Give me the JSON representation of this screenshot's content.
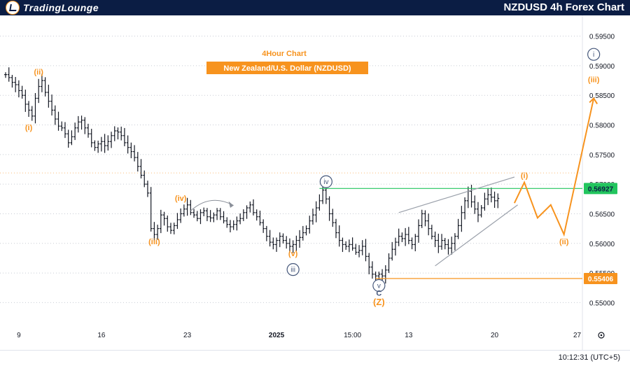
{
  "header": {
    "brand": "TradingLounge",
    "chart_title": "NZDUSD 4h Forex Chart"
  },
  "annotations": {
    "timeframe": "4Hour Chart",
    "instrument": "New Zealand/U.S. Dollar (NZDUSD)"
  },
  "footer": {
    "clock": "10:12:31 (UTC+5)"
  },
  "colors": {
    "orange": "#f7931e",
    "navy": "#0b1d44",
    "green": "#22c55e",
    "wave_circle": "#45577a"
  },
  "chart_data": {
    "type": "line",
    "title": "NZDUSD 4h Forex Chart",
    "y_axis": {
      "ticks": [
        "0.59500",
        "0.59000",
        "0.58500",
        "0.58000",
        "0.57500",
        "0.57000",
        "0.56500",
        "0.56000",
        "0.55500",
        "0.55000"
      ],
      "range": [
        0.5465,
        0.5985
      ]
    },
    "x_axis": {
      "ticks": [
        {
          "label": "9",
          "i": 4
        },
        {
          "label": "16",
          "i": 29
        },
        {
          "label": "23",
          "i": 55
        },
        {
          "label": "2025",
          "i": 82
        },
        {
          "label": "15:00",
          "i": 105
        },
        {
          "label": "13",
          "i": 122
        },
        {
          "label": "20",
          "i": 148
        },
        {
          "label": "27",
          "i": 173
        }
      ]
    },
    "price_levels": [
      {
        "label": "0.56927",
        "value": 0.56927,
        "color": "#22c55e"
      },
      {
        "label": "0.55406",
        "value": 0.55406,
        "color": "#f7931e"
      }
    ],
    "series": [
      {
        "values": [
          0.5885,
          0.588,
          0.5872,
          0.5868,
          0.5858,
          0.585,
          0.5835,
          0.5825,
          0.5815,
          0.5845,
          0.5865,
          0.5875,
          0.5855,
          0.584,
          0.5825,
          0.581,
          0.5798,
          0.5795,
          0.5785,
          0.577,
          0.578,
          0.5795,
          0.5805,
          0.5808,
          0.5795,
          0.5785,
          0.577,
          0.5762,
          0.5768,
          0.5772,
          0.5765,
          0.5772,
          0.5782,
          0.579,
          0.5788,
          0.5782,
          0.577,
          0.5762,
          0.5755,
          0.5745,
          0.573,
          0.5715,
          0.57,
          0.5685,
          0.5625,
          0.5615,
          0.5625,
          0.5648,
          0.5642,
          0.5628,
          0.5622,
          0.563,
          0.564,
          0.565,
          0.5658,
          0.5665,
          0.5652,
          0.5648,
          0.5642,
          0.5652,
          0.5655,
          0.5645,
          0.5643,
          0.5648,
          0.5655,
          0.5645,
          0.5638,
          0.5632,
          0.5628,
          0.5632,
          0.5638,
          0.5642,
          0.5652,
          0.566,
          0.5665,
          0.5652,
          0.5645,
          0.5635,
          0.5625,
          0.5612,
          0.5602,
          0.5598,
          0.5605,
          0.5612,
          0.5605,
          0.56,
          0.5595,
          0.5598,
          0.5605,
          0.561,
          0.5618,
          0.5625,
          0.5638,
          0.5648,
          0.566,
          0.5672,
          0.569,
          0.5675,
          0.565,
          0.5635,
          0.5618,
          0.5605,
          0.5598,
          0.5595,
          0.5598,
          0.5592,
          0.5585,
          0.5588,
          0.5595,
          0.5578,
          0.556,
          0.5548,
          0.5545,
          0.5548,
          0.5545,
          0.5555,
          0.5575,
          0.559,
          0.5602,
          0.5612,
          0.5608,
          0.5615,
          0.5605,
          0.5598,
          0.5612,
          0.563,
          0.565,
          0.5638,
          0.5625,
          0.5612,
          0.5605,
          0.5595,
          0.5605,
          0.5598,
          0.5592,
          0.56,
          0.5612,
          0.563,
          0.5652,
          0.5672,
          0.5688,
          0.567,
          0.5658,
          0.5648,
          0.566,
          0.5675,
          0.5682,
          0.5678,
          0.5672,
          0.5676
        ]
      },
      {
        "name": "projection",
        "values_xy": [
          [
            154,
            0.5668
          ],
          [
            157,
            0.5703
          ],
          [
            161,
            0.5643
          ],
          [
            165,
            0.5665
          ],
          [
            169,
            0.5615
          ],
          [
            178,
            0.5845
          ]
        ]
      }
    ],
    "wave_labels": [
      {
        "label": "(ii)",
        "i": 10,
        "value": 0.5878,
        "color": "#f7931e",
        "style": "text",
        "place": "above"
      },
      {
        "label": "(i)",
        "i": 7,
        "value": 0.5808,
        "color": "#f7931e",
        "style": "text",
        "place": "below"
      },
      {
        "label": "(iii)",
        "i": 45,
        "value": 0.5615,
        "color": "#f7931e",
        "style": "text",
        "place": "below"
      },
      {
        "label": "(iv)",
        "i": 53,
        "value": 0.5665,
        "color": "#f7931e",
        "style": "text",
        "place": "above"
      },
      {
        "label": "(v)",
        "i": 87,
        "value": 0.5595,
        "color": "#f7931e",
        "style": "text",
        "place": "below"
      },
      {
        "label": "iii",
        "i": 87,
        "value": 0.557,
        "color": "#45577a",
        "style": "circle",
        "place": "below"
      },
      {
        "label": "iv",
        "i": 97,
        "value": 0.569,
        "color": "#45577a",
        "style": "circle",
        "place": "above"
      },
      {
        "label": "v",
        "i": 113,
        "value": 0.5543,
        "color": "#45577a",
        "style": "circle",
        "place": "below"
      },
      {
        "label": "C",
        "i": 113,
        "value": 0.5528,
        "color": "#45577a",
        "style": "text",
        "place": "below"
      },
      {
        "label": "(Z)",
        "i": 113,
        "value": 0.5512,
        "color": "#f7931e",
        "style": "text",
        "place": "below"
      },
      {
        "label": "(i)",
        "i": 157,
        "value": 0.5703,
        "color": "#f7931e",
        "style": "text",
        "place": "above"
      },
      {
        "label": "(ii)",
        "i": 169,
        "value": 0.5615,
        "color": "#f7931e",
        "style": "text",
        "place": "below"
      },
      {
        "label": "i",
        "i": 178,
        "value": 0.5905,
        "color": "#45577a",
        "style": "circle",
        "place": "above"
      },
      {
        "label": "(iii)",
        "i": 178,
        "value": 0.5865,
        "color": "#f7931e",
        "style": "text",
        "place": "above"
      }
    ]
  }
}
